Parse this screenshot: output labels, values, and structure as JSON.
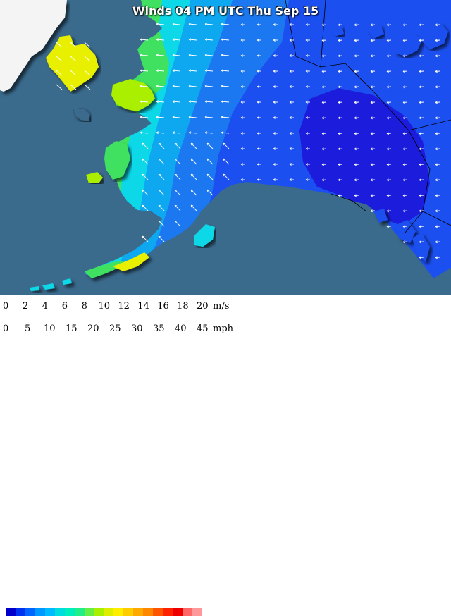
{
  "title": "Winds 04 PM UTC Thu Sep 15",
  "legend": {
    "ms_labels": [
      "0",
      "2",
      "4",
      "6",
      "8",
      "10",
      "12",
      "14",
      "16",
      "18",
      "20"
    ],
    "ms_unit": "m/s",
    "mph_labels": [
      "0",
      "5",
      "10",
      "15",
      "20",
      "25",
      "30",
      "35",
      "40",
      "45"
    ],
    "mph_unit": "mph",
    "colors": [
      "#0000cc",
      "#0033ee",
      "#0066ff",
      "#0099ff",
      "#00bbff",
      "#00dddd",
      "#00eebb",
      "#22ee88",
      "#66ee44",
      "#aaee00",
      "#ddee00",
      "#ffee00",
      "#ffcc00",
      "#ffaa00",
      "#ff8800",
      "#ff5500",
      "#ff2200",
      "#ee0000",
      "#ff6666",
      "#ff9999"
    ]
  },
  "map_colors": {
    "ocean": "#3a6a8c",
    "land_outside": "#f4f4f4",
    "dark_blue": "#1a1adc",
    "blue": "#1e4ff0",
    "mid_blue": "#1e78f0",
    "light_blue": "#10a8f0",
    "cyan": "#10d8e8",
    "green": "#40e060",
    "yellow": "#e8f000"
  }
}
